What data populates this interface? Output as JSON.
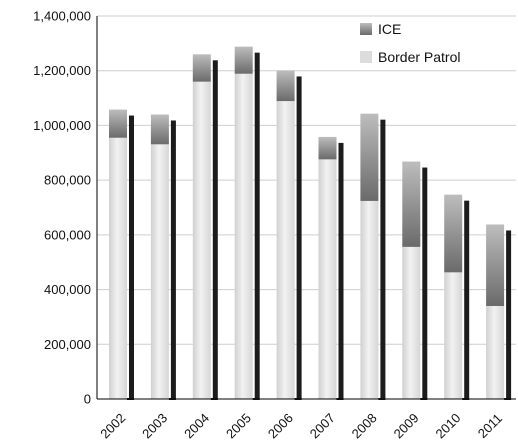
{
  "chart_data": {
    "type": "bar",
    "stacked": true,
    "categories": [
      "2002",
      "2003",
      "2004",
      "2005",
      "2006",
      "2007",
      "2008",
      "2009",
      "2010",
      "2011"
    ],
    "series": [
      {
        "name": "Border Patrol",
        "values": [
          955000,
          931000,
          1160000,
          1189000,
          1089000,
          876000,
          724000,
          556000,
          463000,
          340000
        ]
      },
      {
        "name": "ICE",
        "values": [
          103000,
          109000,
          100000,
          99000,
          112000,
          82000,
          319000,
          312000,
          284000,
          298000
        ]
      }
    ],
    "ylim": [
      0,
      1400000
    ],
    "y_ticks": [
      "0",
      "200,000",
      "400,000",
      "600,000",
      "800,000",
      "1,000,000",
      "1,200,000",
      "1,400,000"
    ],
    "y_tick_values": [
      0,
      200000,
      400000,
      600000,
      800000,
      1000000,
      1200000,
      1400000
    ],
    "grid": true,
    "legend": {
      "placement": "top-right",
      "order": [
        "ICE",
        "Border Patrol"
      ]
    },
    "colors": {
      "ICE": "#7a7a7a",
      "Border Patrol": "#dedede",
      "shadow": "#1c1c1c",
      "grid": "#cfcfcf"
    }
  }
}
